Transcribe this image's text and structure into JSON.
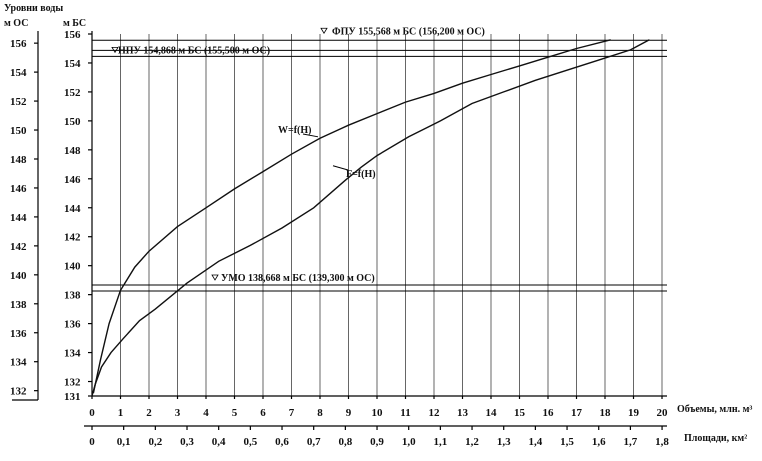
{
  "chart_data": {
    "type": "line",
    "title": "",
    "y_title_1": "Уровни воды",
    "y_title_os": "м ОС",
    "y_title_bs": "м БС",
    "x_title_volume": "Объемы, млн. м³",
    "x_title_area": "Площади, км²",
    "y_bs_range": [
      131,
      156
    ],
    "y_bs_ticks": [
      "131",
      "132",
      "134",
      "136",
      "138",
      "140",
      "142",
      "144",
      "146",
      "148",
      "150",
      "152",
      "154",
      "156"
    ],
    "y_os_range": [
      131.632,
      156.632
    ],
    "y_os_ticks": [
      "132",
      "134",
      "136",
      "138",
      "140",
      "142",
      "144",
      "146",
      "148",
      "150",
      "152",
      "154",
      "156"
    ],
    "x_volume_range": [
      0,
      21
    ],
    "x_volume_ticks": [
      "0",
      "1",
      "2",
      "3",
      "4",
      "5",
      "6",
      "7",
      "8",
      "9",
      "10",
      "11",
      "12",
      "13",
      "14",
      "15",
      "16",
      "17",
      "18",
      "19",
      "20"
    ],
    "x_area_range": [
      0,
      1.8
    ],
    "x_area_ticks": [
      "0",
      "0,1",
      "0,2",
      "0,3",
      "0,4",
      "0,5",
      "0,6",
      "0,7",
      "0,8",
      "0,9",
      "1,0",
      "1,1",
      "1,2",
      "1,3",
      "1,4",
      "1,5",
      "1,6",
      "1,7",
      "1,8"
    ],
    "grid": "vertical",
    "series": [
      {
        "name": "W=f(H)",
        "axis": "volume",
        "x": [
          0.05,
          0.3,
          0.6,
          1.0,
          1.5,
          2.0,
          3.0,
          4.0,
          5.0,
          6.0,
          7.0,
          8.0,
          9.0,
          10.0,
          11.0,
          12.0,
          13.0,
          14.0,
          15.0,
          16.0,
          17.0,
          18.2
        ],
        "y": [
          131.2,
          133.5,
          136.0,
          138.3,
          139.9,
          141.0,
          142.7,
          144.0,
          145.3,
          146.5,
          147.7,
          148.8,
          149.7,
          150.5,
          151.3,
          151.9,
          152.6,
          153.2,
          153.8,
          154.4,
          155.0,
          155.6
        ]
      },
      {
        "name": "F=f(H)",
        "axis": "area",
        "x": [
          0.0,
          0.01,
          0.03,
          0.06,
          0.1,
          0.15,
          0.2,
          0.3,
          0.4,
          0.5,
          0.6,
          0.7,
          0.8,
          0.85,
          0.9,
          1.0,
          1.1,
          1.2,
          1.3,
          1.4,
          1.5,
          1.6,
          1.7,
          1.76
        ],
        "y": [
          131.0,
          131.8,
          133.0,
          134.0,
          135.0,
          136.2,
          137.0,
          138.8,
          140.3,
          141.4,
          142.6,
          144.0,
          145.9,
          146.8,
          147.6,
          148.9,
          150.0,
          151.2,
          152.0,
          152.8,
          153.5,
          154.2,
          154.9,
          155.6
        ]
      }
    ],
    "annotations": [
      {
        "label": "НПУ 154,868 м БС (155,500 м ОС)",
        "level_bs": 154.868
      },
      {
        "label": "ФПУ 155,568 м БС (156,200 м ОС)",
        "level_bs": 155.568
      },
      {
        "label": "УМО 138,668 м БС (139,300 м ОС)",
        "level_bs": 138.668
      }
    ]
  }
}
